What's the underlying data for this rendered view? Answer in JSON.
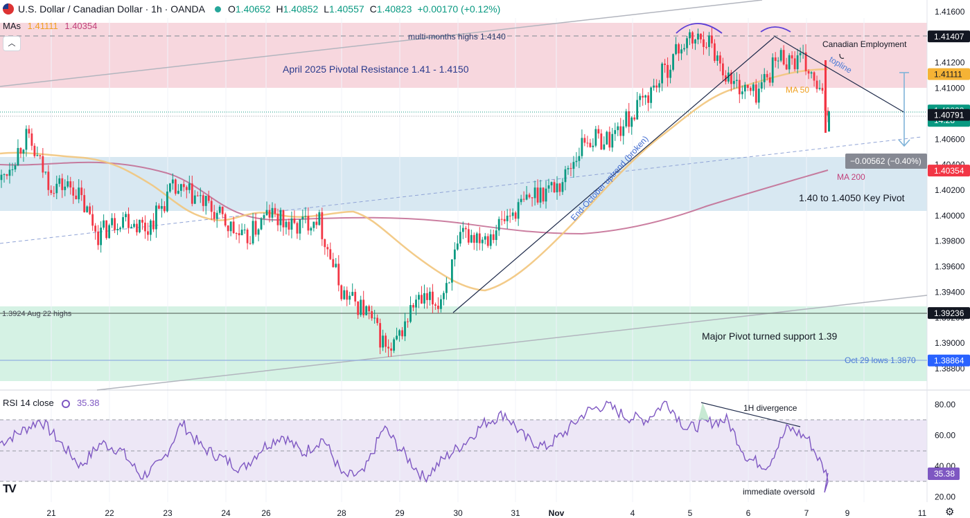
{
  "header": {
    "symbol": "U.S. Dollar / Canadian Dollar · 1h · OANDA",
    "open_label": "O",
    "open": "1.40652",
    "high_label": "H",
    "high": "1.40852",
    "low_label": "L",
    "low": "1.40557",
    "close_label": "C",
    "close": "1.40823",
    "change": "+0.00170 (+0.12%)"
  },
  "mas_legend": {
    "label": "MAs",
    "ma50": "1.41111",
    "ma200": "1.40354"
  },
  "rsi_legend": {
    "label": "RSI 14 close",
    "value": "35.38"
  },
  "colors": {
    "up": "#089981",
    "down": "#f23645",
    "ma50": "#f2c57c",
    "ma200": "#c2678f",
    "rsi": "#7e57c2",
    "resistance_zone": "#f7d4dc",
    "pivot_zone": "#d6e7f2",
    "support_zone": "#d4f1e2"
  },
  "chart_data": {
    "type": "candlestick",
    "title": "U.S. Dollar / Canadian Dollar · 1h · OANDA",
    "y_axis": {
      "range": [
        1.3872,
        1.4165
      ],
      "ticks": [
        "1.41600",
        "1.41400",
        "1.41200",
        "1.41000",
        "1.40800",
        "1.40600",
        "1.40400",
        "1.40200",
        "1.40000",
        "1.39800",
        "1.39600",
        "1.39400",
        "1.39200",
        "1.39000",
        "1.38800"
      ]
    },
    "x_ticks": [
      "21",
      "22",
      "23",
      "24",
      "26",
      "28",
      "29",
      "30",
      "31",
      "Nov",
      "4",
      "5",
      "6",
      "7",
      "9",
      "11"
    ],
    "price_tags": [
      {
        "value": "1.41407",
        "bg": "#131722",
        "fg": "#ffffff"
      },
      {
        "value": "1.41111",
        "bg": "#f5b335",
        "fg": "#131722"
      },
      {
        "value": "1.40823",
        "bg": "#089981",
        "fg": "#ffffff",
        "extra": "14:28"
      },
      {
        "value": "1.40791",
        "bg": "#131722",
        "fg": "#ffffff"
      },
      {
        "value": "1.40354",
        "bg": "#f23645",
        "fg": "#ffffff"
      },
      {
        "value": "1.39236",
        "bg": "#131722",
        "fg": "#ffffff"
      },
      {
        "value": "1.38864",
        "bg": "#2962ff",
        "fg": "#ffffff"
      }
    ],
    "zones": [
      {
        "name": "April 2025 Pivotal Resistance 1.41 - 1.4150",
        "from": 1.41,
        "to": 1.415
      },
      {
        "name": "1.40 to 1.4050 Key Pivot",
        "from": 1.4003,
        "to": 1.4046
      },
      {
        "name": "Major Pivot turned support 1.39",
        "from": 1.3873,
        "to": 1.3928
      }
    ],
    "levels": [
      {
        "label": "multi-months highs 1.4140",
        "value": 1.414
      },
      {
        "label": "1.3924 Aug 22 highs",
        "value": 1.39236
      },
      {
        "label": "Oct 29 lows 1.3870",
        "value": 1.38864
      }
    ],
    "annotations": [
      "Canadian Employment",
      "topline",
      "MA 50",
      "MA 200",
      "End-October uptrend (broken)",
      "−0.00562 (−0.40%)"
    ],
    "candles": [
      {
        "date": "Oct 21",
        "close": 1.4028
      },
      {
        "date": "Oct 21",
        "close": 1.4062
      },
      {
        "date": "Oct 22",
        "close": 1.4025
      },
      {
        "date": "Oct 22",
        "close": 1.4022
      },
      {
        "date": "Oct 23",
        "close": 1.3985
      },
      {
        "date": "Oct 23",
        "close": 1.4
      },
      {
        "date": "Oct 24",
        "close": 1.399
      },
      {
        "date": "Oct 24",
        "close": 1.402
      },
      {
        "date": "Oct 26",
        "close": 1.4015
      },
      {
        "date": "Oct 26",
        "close": 1.3998
      },
      {
        "date": "Oct 27",
        "close": 1.398
      },
      {
        "date": "Oct 27",
        "close": 1.4002
      },
      {
        "date": "Oct 28",
        "close": 1.399
      },
      {
        "date": "Oct 28",
        "close": 1.4
      },
      {
        "date": "Oct 28",
        "close": 1.394
      },
      {
        "date": "Oct 29",
        "close": 1.3925
      },
      {
        "date": "Oct 29",
        "close": 1.389
      },
      {
        "date": "Oct 29",
        "close": 1.3932
      },
      {
        "date": "Oct 30",
        "close": 1.3932
      },
      {
        "date": "Oct 30",
        "close": 1.3985
      },
      {
        "date": "Oct 30",
        "close": 1.3985
      },
      {
        "date": "Oct 31",
        "close": 1.4002
      },
      {
        "date": "Oct 31",
        "close": 1.4018
      },
      {
        "date": "Nov 3",
        "close": 1.4025
      },
      {
        "date": "Nov 3",
        "close": 1.406
      },
      {
        "date": "Nov 3",
        "close": 1.406
      },
      {
        "date": "Nov 4",
        "close": 1.408
      },
      {
        "date": "Nov 4",
        "close": 1.4105
      },
      {
        "date": "Nov 5",
        "close": 1.4135
      },
      {
        "date": "Nov 5",
        "close": 1.414
      },
      {
        "date": "Nov 6",
        "close": 1.4105
      },
      {
        "date": "Nov 6",
        "close": 1.4095
      },
      {
        "date": "Nov 6",
        "close": 1.4125
      },
      {
        "date": "Nov 7",
        "close": 1.412
      },
      {
        "date": "Nov 7",
        "close": 1.4082
      }
    ],
    "ma50": [
      1.404,
      1.4035,
      1.403,
      1.4025,
      1.4012,
      1.4004,
      1.4003,
      1.4001,
      1.3999,
      1.3995,
      1.399,
      1.3995,
      1.3993,
      1.397,
      1.395,
      1.3948,
      1.396,
      1.3985,
      1.4005,
      1.4035,
      1.4065,
      1.409,
      1.4105,
      1.4111
    ],
    "ma200": [
      1.4034,
      1.4029,
      1.4027,
      1.4022,
      1.4013,
      1.4006,
      1.4,
      1.3996,
      1.3995,
      1.3994,
      1.3998,
      1.4007,
      1.4018,
      1.4025,
      1.4035
    ],
    "rsi": {
      "range": [
        15,
        85
      ],
      "ticks": [
        "80.00",
        "60.00",
        "40.00",
        "20.00"
      ],
      "levels": [
        70,
        50,
        30
      ],
      "annotations": [
        "1H divergence",
        "immediate oversold"
      ],
      "values": [
        55,
        62,
        70,
        55,
        40,
        55,
        50,
        33,
        42,
        68,
        52,
        45,
        38,
        52,
        60,
        48,
        58,
        33,
        35,
        65,
        48,
        32,
        45,
        55,
        68,
        74,
        58,
        52,
        62,
        75,
        80,
        72,
        70,
        82,
        64,
        68,
        70,
        45,
        40,
        65,
        58,
        33
      ]
    }
  }
}
